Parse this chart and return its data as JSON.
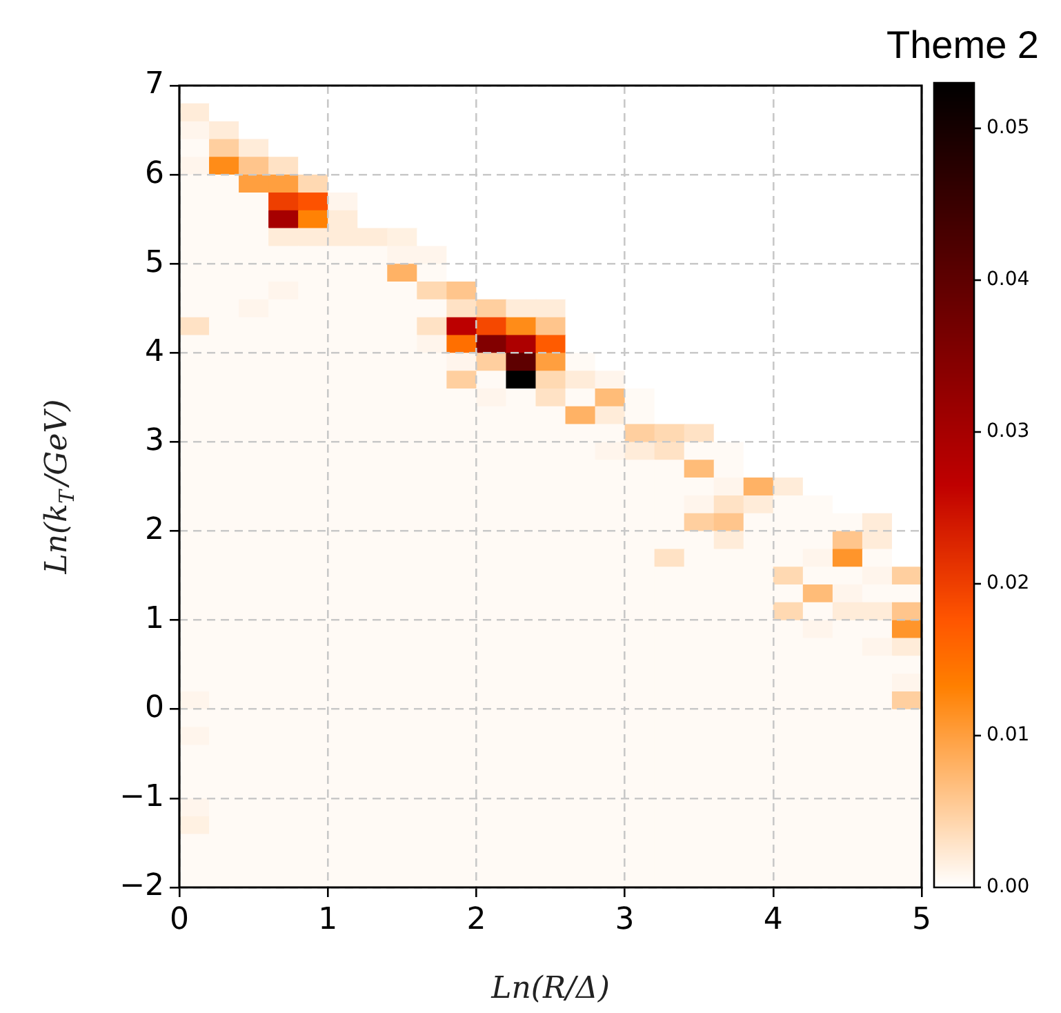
{
  "chart_data": {
    "type": "heatmap",
    "title": "Theme 2",
    "xlabel": "Ln(R/Δ)",
    "ylabel": "Ln(k$_{T}$/GeV)",
    "xlim": [
      0,
      5
    ],
    "xticks": [
      0,
      1,
      2,
      3,
      4,
      5
    ],
    "ylim": [
      -2,
      7
    ],
    "yticks": [
      {
        "value": -2,
        "label": "−2"
      },
      {
        "value": -1,
        "label": "−1"
      },
      0,
      1,
      2,
      3,
      4,
      5,
      6,
      7
    ],
    "grid": true,
    "clim": [
      0,
      0.053
    ],
    "cticks": [
      {
        "value": 0,
        "label": "0.00"
      },
      {
        "value": 0.01,
        "label": "0.01"
      },
      {
        "value": 0.02,
        "label": "0.02"
      },
      {
        "value": 0.03,
        "label": "0.03"
      },
      {
        "value": 0.04,
        "label": "0.04"
      },
      {
        "value": 0.05,
        "label": "0.05"
      }
    ],
    "cells": [
      [
        0,
        0,
        0,
        0,
        0,
        0,
        0,
        0,
        0,
        0,
        0,
        0,
        0,
        0,
        0,
        0,
        0,
        0,
        0,
        0,
        0,
        0,
        0,
        0,
        0
      ],
      [
        0.002,
        0,
        0,
        0,
        0,
        0,
        0,
        0,
        0,
        0,
        0,
        0,
        0,
        0,
        0,
        0,
        0,
        0,
        0,
        0,
        0,
        0,
        0,
        0,
        0
      ],
      [
        0.001,
        0.002,
        0,
        0,
        0,
        0,
        0,
        0,
        0,
        0,
        0,
        0,
        0,
        0,
        0,
        0,
        0,
        0,
        0,
        0,
        0,
        0,
        0,
        0,
        0
      ],
      [
        0.0005,
        0.005,
        0.002,
        0,
        0,
        0,
        0,
        0,
        0,
        0,
        0,
        0,
        0,
        0,
        0,
        0,
        0,
        0,
        0,
        0,
        0,
        0,
        0,
        0,
        0
      ],
      [
        0.001,
        0.012,
        0.006,
        0.003,
        0,
        0,
        0,
        0,
        0,
        0,
        0,
        0,
        0,
        0,
        0,
        0,
        0,
        0,
        0,
        0,
        0,
        0,
        0,
        0,
        0
      ],
      [
        0.0005,
        0.0005,
        0.01,
        0.01,
        0.004,
        0,
        0,
        0,
        0,
        0,
        0,
        0,
        0,
        0,
        0,
        0,
        0,
        0,
        0,
        0,
        0,
        0,
        0,
        0,
        0
      ],
      [
        0.0005,
        0.0005,
        0.0005,
        0.02,
        0.018,
        0.001,
        0,
        0,
        0,
        0,
        0,
        0,
        0,
        0,
        0,
        0,
        0,
        0,
        0,
        0,
        0,
        0,
        0,
        0,
        0
      ],
      [
        0.0005,
        0.0005,
        0.0005,
        0.03,
        0.013,
        0.002,
        0,
        0,
        0,
        0,
        0,
        0,
        0,
        0,
        0,
        0,
        0,
        0,
        0,
        0,
        0,
        0,
        0,
        0,
        0
      ],
      [
        0.0005,
        0.0005,
        0.0005,
        0.002,
        0.002,
        0.002,
        0.002,
        0.0015,
        0,
        0,
        0,
        0,
        0,
        0,
        0,
        0,
        0,
        0,
        0,
        0,
        0,
        0,
        0,
        0,
        0
      ],
      [
        0.0005,
        0.0005,
        0.0005,
        0.0005,
        0.0005,
        0.0005,
        0.0005,
        0.001,
        0.001,
        0,
        0,
        0,
        0,
        0,
        0,
        0,
        0,
        0,
        0,
        0,
        0,
        0,
        0,
        0,
        0
      ],
      [
        0.0005,
        0.0005,
        0.0005,
        0.0005,
        0.0005,
        0.0005,
        0.0005,
        0.008,
        0.0005,
        0,
        0,
        0,
        0,
        0,
        0,
        0,
        0,
        0,
        0,
        0,
        0,
        0,
        0,
        0,
        0
      ],
      [
        0.0005,
        0.0005,
        0.0005,
        0.001,
        0.0005,
        0.0005,
        0.0005,
        0.0005,
        0.004,
        0.006,
        0,
        0,
        0,
        0,
        0,
        0,
        0,
        0,
        0,
        0,
        0,
        0,
        0,
        0,
        0
      ],
      [
        0.0005,
        0.0005,
        0.001,
        0.0005,
        0.0005,
        0.0005,
        0.0005,
        0.0005,
        0.0005,
        0.003,
        0.005,
        0.002,
        0.002,
        0,
        0,
        0,
        0,
        0,
        0,
        0,
        0,
        0,
        0,
        0,
        0
      ],
      [
        0.003,
        0.0005,
        0.0005,
        0.0005,
        0.0005,
        0.0005,
        0.0005,
        0.0005,
        0.003,
        0.027,
        0.019,
        0.012,
        0.006,
        0,
        0,
        0,
        0,
        0,
        0,
        0,
        0,
        0,
        0,
        0,
        0
      ],
      [
        0.0005,
        0.0005,
        0.0005,
        0.0005,
        0.0005,
        0.0005,
        0.0005,
        0.0005,
        0.001,
        0.015,
        0.035,
        0.029,
        0.017,
        0,
        0,
        0,
        0,
        0,
        0,
        0,
        0,
        0,
        0,
        0,
        0
      ],
      [
        0.0005,
        0.0005,
        0.0005,
        0.0005,
        0.0005,
        0.0005,
        0.0005,
        0.0005,
        0.0005,
        0.001,
        0.005,
        0.04,
        0.01,
        0.0005,
        0,
        0,
        0,
        0,
        0,
        0,
        0,
        0,
        0,
        0,
        0
      ],
      [
        0.0005,
        0.0005,
        0.0005,
        0.0005,
        0.0005,
        0.0005,
        0.0005,
        0.0005,
        0.0005,
        0.005,
        0.0005,
        0.053,
        0.004,
        0.002,
        0.001,
        0,
        0,
        0,
        0,
        0,
        0,
        0,
        0,
        0,
        0
      ],
      [
        0.0005,
        0.0005,
        0.0005,
        0.0005,
        0.0005,
        0.0005,
        0.0005,
        0.0005,
        0.0005,
        0.0005,
        0.001,
        0.0005,
        0.003,
        0.0005,
        0.007,
        0.0005,
        0,
        0,
        0,
        0,
        0,
        0,
        0,
        0,
        0
      ],
      [
        0.0005,
        0.0005,
        0.0005,
        0.0005,
        0.0005,
        0.0005,
        0.0005,
        0.0005,
        0.0005,
        0.0005,
        0.0005,
        0.0005,
        0.0005,
        0.008,
        0.002,
        0.0005,
        0,
        0,
        0,
        0,
        0,
        0,
        0,
        0,
        0
      ],
      [
        0.0005,
        0.0005,
        0.0005,
        0.0005,
        0.0005,
        0.0005,
        0.0005,
        0.0005,
        0.0005,
        0.0005,
        0.0005,
        0.0005,
        0.0005,
        0.0005,
        0.0005,
        0.005,
        0.004,
        0.003,
        0,
        0,
        0,
        0,
        0,
        0,
        0
      ],
      [
        0.0005,
        0.0005,
        0.0005,
        0.0005,
        0.0005,
        0.0005,
        0.0005,
        0.0005,
        0.0005,
        0.0005,
        0.0005,
        0.0005,
        0.0005,
        0.0005,
        0.001,
        0.002,
        0.003,
        0.0005,
        0.0005,
        0,
        0,
        0,
        0,
        0,
        0
      ],
      [
        0.0005,
        0.0005,
        0.0005,
        0.0005,
        0.0005,
        0.0005,
        0.0005,
        0.0005,
        0.0005,
        0.0005,
        0.0005,
        0.0005,
        0.0005,
        0.0005,
        0.0005,
        0.0005,
        0.0005,
        0.007,
        0.0005,
        0,
        0,
        0,
        0,
        0,
        0
      ],
      [
        0.0005,
        0.0005,
        0.0005,
        0.0005,
        0.0005,
        0.0005,
        0.0005,
        0.0005,
        0.0005,
        0.0005,
        0.0005,
        0.0005,
        0.0005,
        0.0005,
        0.0005,
        0.0005,
        0.0005,
        0.0005,
        0.001,
        0.008,
        0.002,
        0,
        0,
        0,
        0
      ],
      [
        0.0005,
        0.0005,
        0.0005,
        0.0005,
        0.0005,
        0.0005,
        0.0005,
        0.0005,
        0.0005,
        0.0005,
        0.0005,
        0.0005,
        0.0005,
        0.0005,
        0.0005,
        0.0005,
        0.0005,
        0.001,
        0.003,
        0.002,
        0.0005,
        0.0005,
        0,
        0,
        0
      ],
      [
        0.0005,
        0.0005,
        0.0005,
        0.0005,
        0.0005,
        0.0005,
        0.0005,
        0.0005,
        0.0005,
        0.0005,
        0.0005,
        0.0005,
        0.0005,
        0.0005,
        0.0005,
        0.0005,
        0.0005,
        0.005,
        0.006,
        0.0005,
        0.0005,
        0.0005,
        0.0005,
        0.002,
        0
      ],
      [
        0.0005,
        0.0005,
        0.0005,
        0.0005,
        0.0005,
        0.0005,
        0.0005,
        0.0005,
        0.0005,
        0.0005,
        0.0005,
        0.0005,
        0.0005,
        0.0005,
        0.0005,
        0.0005,
        0.0005,
        0.0005,
        0.002,
        0.0005,
        0.0005,
        0.0005,
        0.006,
        0.002,
        0
      ],
      [
        0.0005,
        0.0005,
        0.0005,
        0.0005,
        0.0005,
        0.0005,
        0.0005,
        0.0005,
        0.0005,
        0.0005,
        0.0005,
        0.0005,
        0.0005,
        0.0005,
        0.0005,
        0.0005,
        0.003,
        0.0005,
        0.0005,
        0.0005,
        0.0005,
        0.001,
        0.011,
        0.0005,
        0
      ],
      [
        0.0005,
        0.0005,
        0.0005,
        0.0005,
        0.0005,
        0.0005,
        0.0005,
        0.0005,
        0.0005,
        0.0005,
        0.0005,
        0.0005,
        0.0005,
        0.0005,
        0.0005,
        0.0005,
        0.0005,
        0.0005,
        0.0005,
        0.0005,
        0.004,
        0.0005,
        0.0005,
        0.001,
        0.005
      ],
      [
        0.0005,
        0.0005,
        0.0005,
        0.0005,
        0.0005,
        0.0005,
        0.0005,
        0.0005,
        0.0005,
        0.0005,
        0.0005,
        0.0005,
        0.0005,
        0.0005,
        0.0005,
        0.0005,
        0.0005,
        0.0005,
        0.0005,
        0.0005,
        0.0005,
        0.007,
        0.001,
        0.0005,
        0.0005
      ],
      [
        0.0005,
        0.0005,
        0.0005,
        0.0005,
        0.0005,
        0.0005,
        0.0005,
        0.0005,
        0.0005,
        0.0005,
        0.0005,
        0.0005,
        0.0005,
        0.0005,
        0.0005,
        0.0005,
        0.0005,
        0.0005,
        0.0005,
        0.0005,
        0.004,
        0.0005,
        0.002,
        0.002,
        0.006
      ],
      [
        0.0005,
        0.0005,
        0.0005,
        0.0005,
        0.0005,
        0.0005,
        0.0005,
        0.0005,
        0.0005,
        0.0005,
        0.0005,
        0.0005,
        0.0005,
        0.0005,
        0.0005,
        0.0005,
        0.0005,
        0.0005,
        0.0005,
        0.0005,
        0.0005,
        0.001,
        0.0005,
        0.0005,
        0.011
      ],
      [
        0.0005,
        0.0005,
        0.0005,
        0.0005,
        0.0005,
        0.0005,
        0.0005,
        0.0005,
        0.0005,
        0.0005,
        0.0005,
        0.0005,
        0.0005,
        0.0005,
        0.0005,
        0.0005,
        0.0005,
        0.0005,
        0.0005,
        0.0005,
        0.0005,
        0.0005,
        0.0005,
        0.001,
        0.002
      ],
      [
        0.0005,
        0.0005,
        0.0005,
        0.0005,
        0.0005,
        0.0005,
        0.0005,
        0.0005,
        0.0005,
        0.0005,
        0.0005,
        0.0005,
        0.0005,
        0.0005,
        0.0005,
        0.0005,
        0.0005,
        0.0005,
        0.0005,
        0.0005,
        0.0005,
        0.0005,
        0.0005,
        0.0005,
        0.0005
      ],
      [
        0.0005,
        0.0005,
        0.0005,
        0.0005,
        0.0005,
        0.0005,
        0.0005,
        0.0005,
        0.0005,
        0.0005,
        0.0005,
        0.0005,
        0.0005,
        0.0005,
        0.0005,
        0.0005,
        0.0005,
        0.0005,
        0.0005,
        0.0005,
        0.0005,
        0.0005,
        0.0005,
        0.0005,
        0.001
      ],
      [
        0.001,
        0.0005,
        0.0005,
        0.0005,
        0.0005,
        0.0005,
        0.0005,
        0.0005,
        0.0005,
        0.0005,
        0.0005,
        0.0005,
        0.0005,
        0.0005,
        0.0005,
        0.0005,
        0.0005,
        0.0005,
        0.0005,
        0.0005,
        0.0005,
        0.0005,
        0.0005,
        0.0005,
        0.005
      ],
      [
        0.0005,
        0.0005,
        0.0005,
        0.0005,
        0.0005,
        0.0005,
        0.0005,
        0.0005,
        0.0005,
        0.0005,
        0.0005,
        0.0005,
        0.0005,
        0.0005,
        0.0005,
        0.0005,
        0.0005,
        0.0005,
        0.0005,
        0.0005,
        0.0005,
        0.0005,
        0.0005,
        0.0005,
        0.0005
      ],
      [
        0.001,
        0.0005,
        0.0005,
        0.0005,
        0.0005,
        0.0005,
        0.0005,
        0.0005,
        0.0005,
        0.0005,
        0.0005,
        0.0005,
        0.0005,
        0.0005,
        0.0005,
        0.0005,
        0.0005,
        0.0005,
        0.0005,
        0.0005,
        0.0005,
        0.0005,
        0.0005,
        0.0005,
        0.0005
      ],
      [
        0.0005,
        0.0005,
        0.0005,
        0.0005,
        0.0005,
        0.0005,
        0.0005,
        0.0005,
        0.0005,
        0.0005,
        0.0005,
        0.0005,
        0.0005,
        0.0005,
        0.0005,
        0.0005,
        0.0005,
        0.0005,
        0.0005,
        0.0005,
        0.0005,
        0.0005,
        0.0005,
        0.0005,
        0.0005
      ],
      [
        0.0005,
        0.0005,
        0.0005,
        0.0005,
        0.0005,
        0.0005,
        0.0005,
        0.0005,
        0.0005,
        0.0005,
        0.0005,
        0.0005,
        0.0005,
        0.0005,
        0.0005,
        0.0005,
        0.0005,
        0.0005,
        0.0005,
        0.0005,
        0.0005,
        0.0005,
        0.0005,
        0.0005,
        0.0005
      ],
      [
        0.0005,
        0.0005,
        0.0005,
        0.0005,
        0.0005,
        0.0005,
        0.0005,
        0.0005,
        0.0005,
        0.0005,
        0.0005,
        0.0005,
        0.0005,
        0.0005,
        0.0005,
        0.0005,
        0.0005,
        0.0005,
        0.0005,
        0.0005,
        0.0005,
        0.0005,
        0.0005,
        0.0005,
        0.0005
      ],
      [
        0.001,
        0.0005,
        0.0005,
        0.0005,
        0.0005,
        0.0005,
        0.0005,
        0.0005,
        0.0005,
        0.0005,
        0.0005,
        0.0005,
        0.0005,
        0.0005,
        0.0005,
        0.0005,
        0.0005,
        0.0005,
        0.0005,
        0.0005,
        0.0005,
        0.0005,
        0.0005,
        0.0005,
        0.0005
      ],
      [
        0.0015,
        0.0005,
        0.0005,
        0.0005,
        0.0005,
        0.0005,
        0.0005,
        0.0005,
        0.0005,
        0.0005,
        0.0005,
        0.0005,
        0.0005,
        0.0005,
        0.0005,
        0.0005,
        0.0005,
        0.0005,
        0.0005,
        0.0005,
        0.0005,
        0.0005,
        0.0005,
        0.0005,
        0.0005
      ],
      [
        0.0005,
        0.0005,
        0.0005,
        0.0005,
        0.0005,
        0.0005,
        0.0005,
        0.0005,
        0.0005,
        0.0005,
        0.0005,
        0.0005,
        0.0005,
        0.0005,
        0.0005,
        0.0005,
        0.0005,
        0.0005,
        0.0005,
        0.0005,
        0.0005,
        0.0005,
        0.0005,
        0.0005,
        0.0005
      ],
      [
        0.0005,
        0.0005,
        0.0005,
        0.0005,
        0.0005,
        0.0005,
        0.0005,
        0.0005,
        0.0005,
        0.0005,
        0.0005,
        0.0005,
        0.0005,
        0.0005,
        0.0005,
        0.0005,
        0.0005,
        0.0005,
        0.0005,
        0.0005,
        0.0005,
        0.0005,
        0.0005,
        0.0005,
        0.0005
      ],
      [
        0.0005,
        0.0005,
        0.0005,
        0.0005,
        0.0005,
        0.0005,
        0.0005,
        0.0005,
        0.0005,
        0.0005,
        0.0005,
        0.0005,
        0.0005,
        0.0005,
        0.0005,
        0.0005,
        0.0005,
        0.0005,
        0.0005,
        0.0005,
        0.0005,
        0.0005,
        0.0005,
        0.0005,
        0.0005
      ]
    ]
  }
}
